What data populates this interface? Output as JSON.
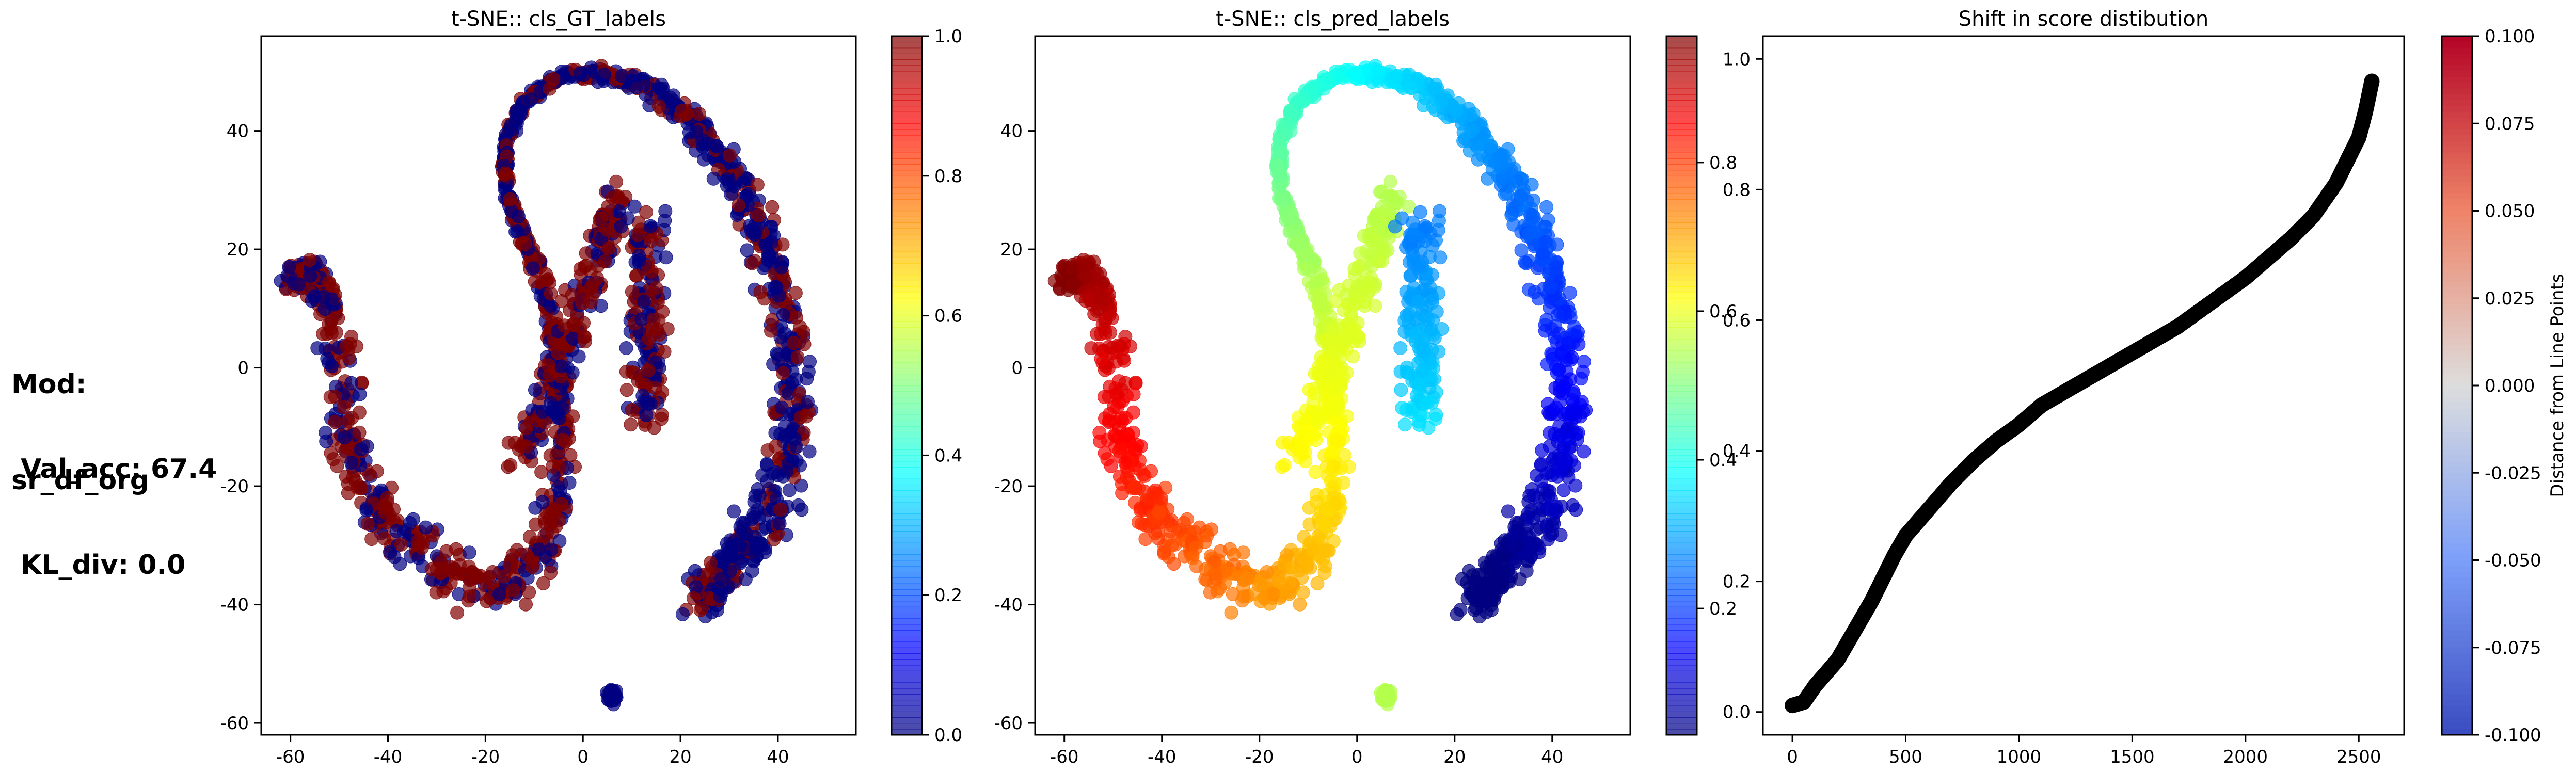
{
  "side_panel": {
    "line1": "Mod:",
    "line2": "sr_df_org",
    "line3": " Val_acc: 67.4",
    "line4": " KL_div: 0.0"
  },
  "chart_data": [
    {
      "type": "scatter",
      "title": "t-SNE:: cls_GT_labels",
      "xlim": [
        -66,
        56
      ],
      "ylim": [
        -62,
        56
      ],
      "xticks": [
        "-60",
        "-40",
        "-20",
        "0",
        "20",
        "40"
      ],
      "yticks": [
        "-60",
        "-40",
        "-20",
        "0",
        "20",
        "40"
      ],
      "colormap": "jet",
      "color_by": "binary label",
      "point_alpha": 0.7,
      "colorbar": {
        "min": 0.0,
        "max": 1.0,
        "ticks": [
          "0.0",
          "0.2",
          "0.4",
          "0.6",
          "0.8",
          "1.0"
        ],
        "label": ""
      },
      "grid": false
    },
    {
      "type": "scatter",
      "title": "t-SNE:: cls_pred_labels",
      "xlim": [
        -66,
        56
      ],
      "ylim": [
        -62,
        56
      ],
      "xticks": [
        "-60",
        "-40",
        "-20",
        "0",
        "20",
        "40"
      ],
      "yticks": [
        "-60",
        "-40",
        "-20",
        "0",
        "20",
        "40"
      ],
      "colormap": "jet",
      "color_by": "predicted score along curve",
      "point_alpha": 0.7,
      "colorbar": {
        "min": 0.03,
        "max": 0.97,
        "ticks": [
          "0.2",
          "0.4",
          "0.6",
          "0.8"
        ],
        "label": ""
      },
      "grid": false
    },
    {
      "type": "line",
      "title": "Shift in score distibution",
      "xlim": [
        -130,
        2700
      ],
      "ylim": [
        -0.035,
        1.035
      ],
      "xticks": [
        "0",
        "500",
        "1000",
        "1500",
        "2000",
        "2500"
      ],
      "yticks": [
        "0.0",
        "0.2",
        "0.4",
        "0.6",
        "0.8",
        "1.0"
      ],
      "series": [
        {
          "x": [
            0,
            50,
            100,
            150,
            200,
            250,
            300,
            350,
            400,
            450,
            500,
            550,
            600,
            700,
            800,
            900,
            1000,
            1100,
            1200,
            1300,
            1400,
            1500,
            1600,
            1700,
            1800,
            1900,
            2000,
            2100,
            2200,
            2300,
            2400,
            2450,
            2500,
            2530,
            2560
          ],
          "y": [
            0.01,
            0.015,
            0.04,
            0.06,
            0.08,
            0.11,
            0.14,
            0.17,
            0.205,
            0.24,
            0.27,
            0.29,
            0.31,
            0.35,
            0.385,
            0.415,
            0.44,
            0.47,
            0.49,
            0.51,
            0.53,
            0.55,
            0.57,
            0.59,
            0.615,
            0.64,
            0.665,
            0.695,
            0.725,
            0.76,
            0.81,
            0.845,
            0.88,
            0.92,
            0.97
          ],
          "color": "#000000"
        }
      ],
      "colormap": "coolwarm",
      "colorbar": {
        "min": -0.1,
        "max": 0.1,
        "ticks": [
          "-0.100",
          "-0.075",
          "-0.050",
          "-0.025",
          "0.000",
          "0.025",
          "0.050",
          "0.075",
          "0.100"
        ],
        "label": "Distance from Line Points"
      },
      "grid": false
    }
  ]
}
